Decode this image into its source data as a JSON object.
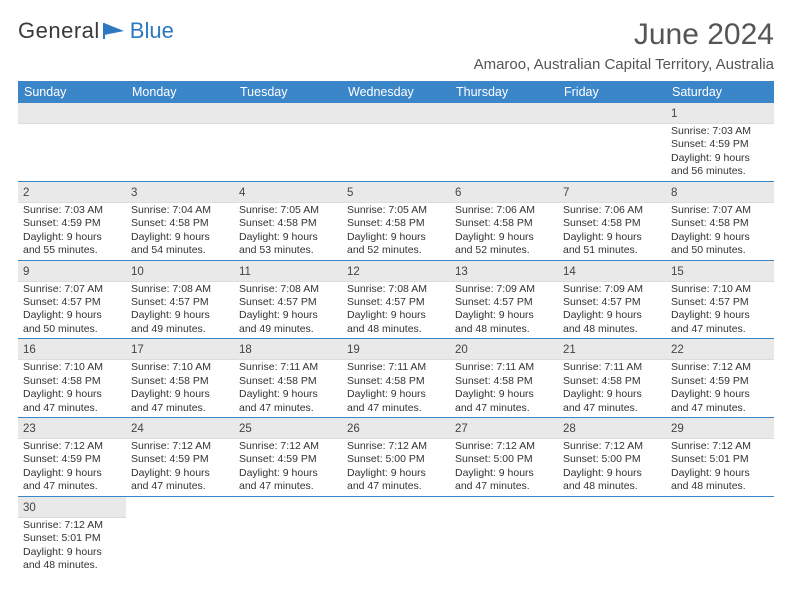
{
  "logo": {
    "text1": "General",
    "text2": "Blue",
    "flag_color": "#2e78c2"
  },
  "title": "June 2024",
  "location": "Amaroo, Australian Capital Territory, Australia",
  "colors": {
    "header_bg": "#3b86c8",
    "header_text": "#ffffff",
    "daynum_bg": "#e9e9e9",
    "row_divider": "#3b86c8",
    "text": "#333333"
  },
  "day_labels": [
    "Sunday",
    "Monday",
    "Tuesday",
    "Wednesday",
    "Thursday",
    "Friday",
    "Saturday"
  ],
  "lead_blanks": 6,
  "days": [
    {
      "n": 1,
      "sunrise": "7:03 AM",
      "sunset": "4:59 PM",
      "daylight": "9 hours and 56 minutes."
    },
    {
      "n": 2,
      "sunrise": "7:03 AM",
      "sunset": "4:59 PM",
      "daylight": "9 hours and 55 minutes."
    },
    {
      "n": 3,
      "sunrise": "7:04 AM",
      "sunset": "4:58 PM",
      "daylight": "9 hours and 54 minutes."
    },
    {
      "n": 4,
      "sunrise": "7:05 AM",
      "sunset": "4:58 PM",
      "daylight": "9 hours and 53 minutes."
    },
    {
      "n": 5,
      "sunrise": "7:05 AM",
      "sunset": "4:58 PM",
      "daylight": "9 hours and 52 minutes."
    },
    {
      "n": 6,
      "sunrise": "7:06 AM",
      "sunset": "4:58 PM",
      "daylight": "9 hours and 52 minutes."
    },
    {
      "n": 7,
      "sunrise": "7:06 AM",
      "sunset": "4:58 PM",
      "daylight": "9 hours and 51 minutes."
    },
    {
      "n": 8,
      "sunrise": "7:07 AM",
      "sunset": "4:58 PM",
      "daylight": "9 hours and 50 minutes."
    },
    {
      "n": 9,
      "sunrise": "7:07 AM",
      "sunset": "4:57 PM",
      "daylight": "9 hours and 50 minutes."
    },
    {
      "n": 10,
      "sunrise": "7:08 AM",
      "sunset": "4:57 PM",
      "daylight": "9 hours and 49 minutes."
    },
    {
      "n": 11,
      "sunrise": "7:08 AM",
      "sunset": "4:57 PM",
      "daylight": "9 hours and 49 minutes."
    },
    {
      "n": 12,
      "sunrise": "7:08 AM",
      "sunset": "4:57 PM",
      "daylight": "9 hours and 48 minutes."
    },
    {
      "n": 13,
      "sunrise": "7:09 AM",
      "sunset": "4:57 PM",
      "daylight": "9 hours and 48 minutes."
    },
    {
      "n": 14,
      "sunrise": "7:09 AM",
      "sunset": "4:57 PM",
      "daylight": "9 hours and 48 minutes."
    },
    {
      "n": 15,
      "sunrise": "7:10 AM",
      "sunset": "4:57 PM",
      "daylight": "9 hours and 47 minutes."
    },
    {
      "n": 16,
      "sunrise": "7:10 AM",
      "sunset": "4:58 PM",
      "daylight": "9 hours and 47 minutes."
    },
    {
      "n": 17,
      "sunrise": "7:10 AM",
      "sunset": "4:58 PM",
      "daylight": "9 hours and 47 minutes."
    },
    {
      "n": 18,
      "sunrise": "7:11 AM",
      "sunset": "4:58 PM",
      "daylight": "9 hours and 47 minutes."
    },
    {
      "n": 19,
      "sunrise": "7:11 AM",
      "sunset": "4:58 PM",
      "daylight": "9 hours and 47 minutes."
    },
    {
      "n": 20,
      "sunrise": "7:11 AM",
      "sunset": "4:58 PM",
      "daylight": "9 hours and 47 minutes."
    },
    {
      "n": 21,
      "sunrise": "7:11 AM",
      "sunset": "4:58 PM",
      "daylight": "9 hours and 47 minutes."
    },
    {
      "n": 22,
      "sunrise": "7:12 AM",
      "sunset": "4:59 PM",
      "daylight": "9 hours and 47 minutes."
    },
    {
      "n": 23,
      "sunrise": "7:12 AM",
      "sunset": "4:59 PM",
      "daylight": "9 hours and 47 minutes."
    },
    {
      "n": 24,
      "sunrise": "7:12 AM",
      "sunset": "4:59 PM",
      "daylight": "9 hours and 47 minutes."
    },
    {
      "n": 25,
      "sunrise": "7:12 AM",
      "sunset": "4:59 PM",
      "daylight": "9 hours and 47 minutes."
    },
    {
      "n": 26,
      "sunrise": "7:12 AM",
      "sunset": "5:00 PM",
      "daylight": "9 hours and 47 minutes."
    },
    {
      "n": 27,
      "sunrise": "7:12 AM",
      "sunset": "5:00 PM",
      "daylight": "9 hours and 47 minutes."
    },
    {
      "n": 28,
      "sunrise": "7:12 AM",
      "sunset": "5:00 PM",
      "daylight": "9 hours and 48 minutes."
    },
    {
      "n": 29,
      "sunrise": "7:12 AM",
      "sunset": "5:01 PM",
      "daylight": "9 hours and 48 minutes."
    },
    {
      "n": 30,
      "sunrise": "7:12 AM",
      "sunset": "5:01 PM",
      "daylight": "9 hours and 48 minutes."
    }
  ],
  "labels": {
    "sunrise": "Sunrise:",
    "sunset": "Sunset:",
    "daylight": "Daylight:"
  }
}
